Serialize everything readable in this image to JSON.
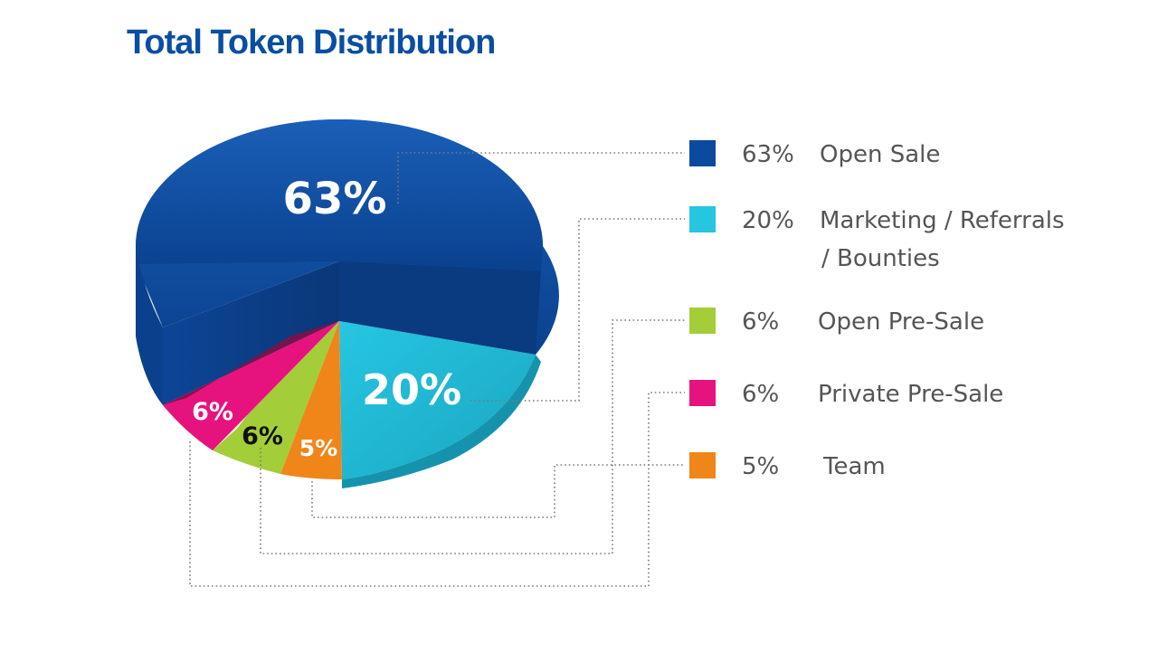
{
  "chart_data": {
    "type": "pie",
    "title": "Total Token Distribution",
    "slices": [
      {
        "value": 63,
        "label": "63%",
        "legend_pct": "63%",
        "legend_lines": [
          "Open Sale"
        ],
        "color": "#0b4a9e"
      },
      {
        "value": 20,
        "label": "20%",
        "legend_pct": "20%",
        "legend_lines": [
          "Marketing / Referrals",
          "/ Bounties"
        ],
        "color": "#26c6e1"
      },
      {
        "value": 6,
        "label": "6%",
        "legend_pct": "6%",
        "legend_lines": [
          "Open Pre-Sale"
        ],
        "color": "#a3cd39"
      },
      {
        "value": 6,
        "label": "6%",
        "legend_pct": "6%",
        "legend_lines": [
          "Private Pre-Sale"
        ],
        "color": "#e6137e"
      },
      {
        "value": 5,
        "label": "5%",
        "legend_pct": "5%",
        "legend_lines": [
          "Team"
        ],
        "color": "#f08519"
      }
    ],
    "legend_placement": "right"
  }
}
